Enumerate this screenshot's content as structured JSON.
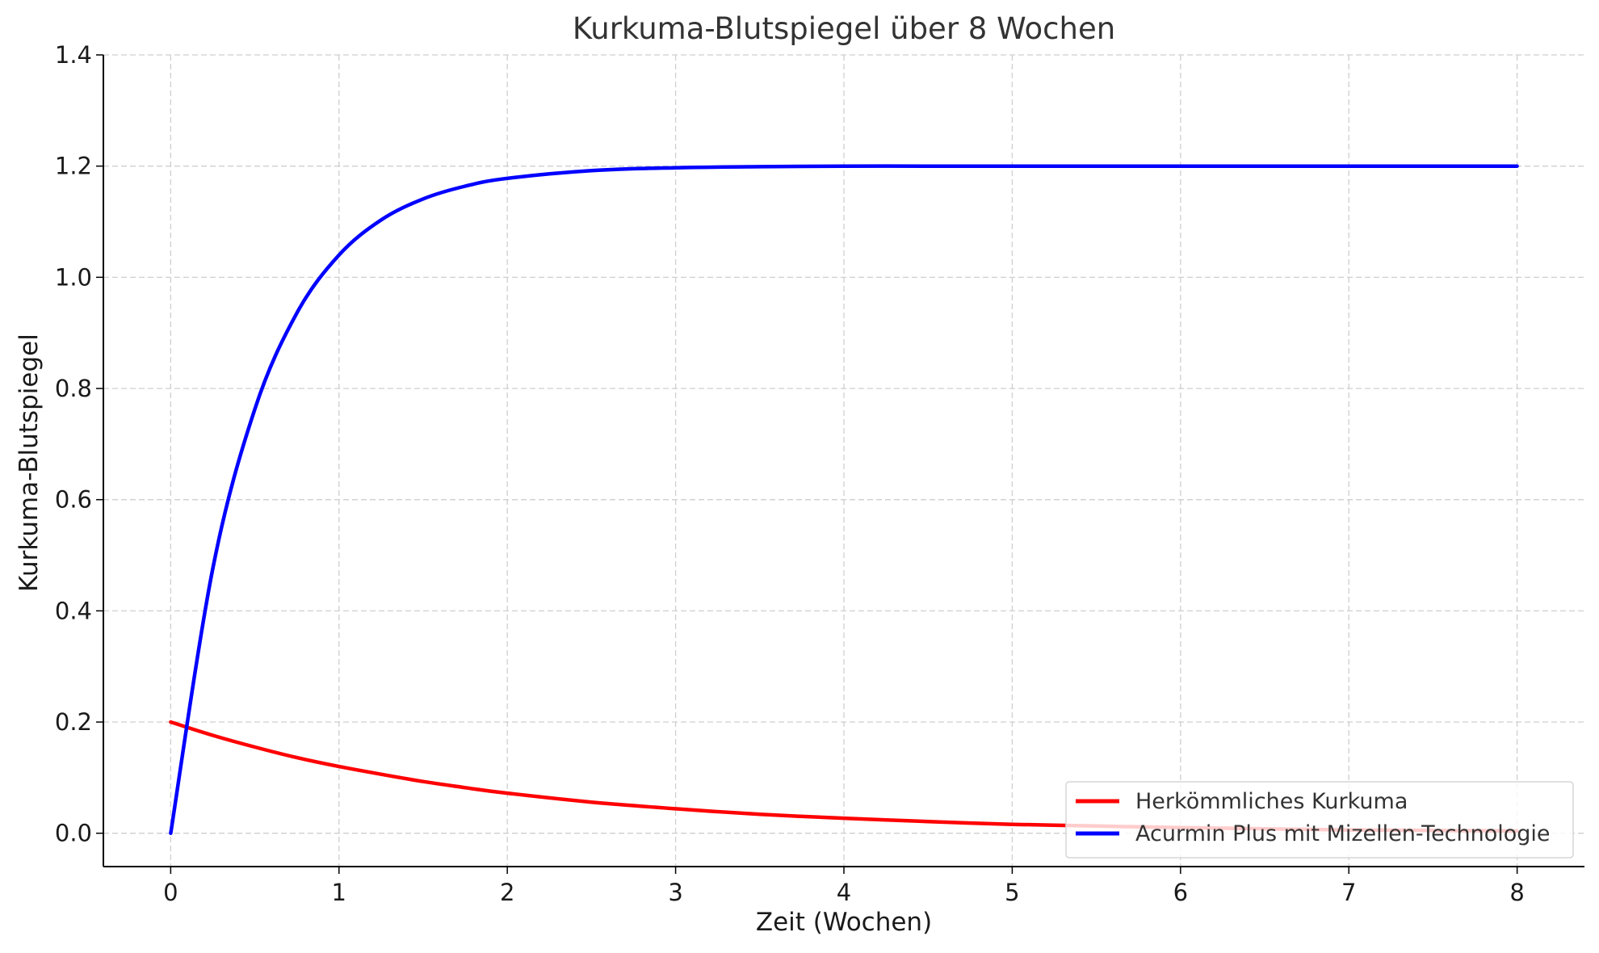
{
  "chart_data": {
    "type": "line",
    "title": "Kurkuma-Blutspiegel über 8 Wochen",
    "xlabel": "Zeit (Wochen)",
    "ylabel": "Kurkuma-Blutspiegel",
    "xlim": [
      -0.4,
      8.4
    ],
    "ylim": [
      -0.06,
      1.4
    ],
    "xticks": [
      0,
      1,
      2,
      3,
      4,
      5,
      6,
      7,
      8
    ],
    "yticks": [
      0.0,
      0.2,
      0.4,
      0.6,
      0.8,
      1.0,
      1.2,
      1.4
    ],
    "ytick_labels": [
      "0.0",
      "0.2",
      "0.4",
      "0.6",
      "0.8",
      "1.0",
      "1.2",
      "1.4"
    ],
    "grid": true,
    "legend_position": "bottom-right",
    "x": [
      0,
      0.25,
      0.5,
      0.75,
      1,
      1.25,
      1.5,
      1.75,
      2,
      2.5,
      3,
      3.5,
      4,
      4.5,
      5,
      5.5,
      6,
      6.5,
      7,
      7.5,
      8
    ],
    "series": [
      {
        "name": "Herkömmliches Kurkuma",
        "color": "#ff0000",
        "values": [
          0.2,
          0.176,
          0.155,
          0.136,
          0.12,
          0.106,
          0.093,
          0.082,
          0.072,
          0.056,
          0.044,
          0.034,
          0.027,
          0.021,
          0.016,
          0.013,
          0.01,
          0.008,
          0.006,
          0.005,
          0.004
        ]
      },
      {
        "name": "Acurmin Plus mit Mizellen-Technologie",
        "color": "#0000ff",
        "values": [
          0.0,
          0.476,
          0.763,
          0.936,
          1.04,
          1.103,
          1.141,
          1.164,
          1.178,
          1.192,
          1.197,
          1.199,
          1.2,
          1.2,
          1.2,
          1.2,
          1.2,
          1.2,
          1.2,
          1.2,
          1.2
        ]
      }
    ]
  }
}
